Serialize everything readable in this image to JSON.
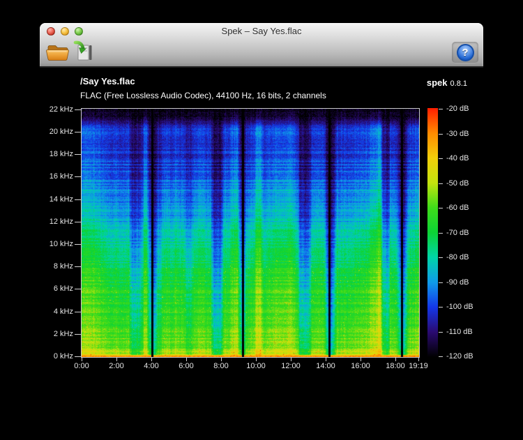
{
  "window": {
    "title": "Spek – Say Yes.flac",
    "traffic_lights": [
      "close",
      "minimize",
      "zoom"
    ]
  },
  "toolbar": {
    "open_button": "open-file",
    "save_button": "save-spectrogram",
    "help_button": "help",
    "help_glyph": "?"
  },
  "header": {
    "file_path": "/Say Yes.flac",
    "app_name": "spek",
    "app_version": "0.8.1",
    "stream_info": "FLAC (Free Lossless Audio Codec), 44100 Hz, 16 bits, 2 channels"
  },
  "chart_data": {
    "type": "heatmap",
    "subtype": "audio-spectrogram",
    "title": "/Say Yes.flac",
    "duration_seconds": 1159,
    "duration_label": "19:19",
    "sample_rate_hz": 44100,
    "bit_depth": 16,
    "channels": 2,
    "freq_axis": {
      "min_hz": 0,
      "max_hz": 22050,
      "ticks": [
        {
          "hz": 22000,
          "label": "22 kHz"
        },
        {
          "hz": 20000,
          "label": "20 kHz"
        },
        {
          "hz": 18000,
          "label": "18 kHz"
        },
        {
          "hz": 16000,
          "label": "16 kHz"
        },
        {
          "hz": 14000,
          "label": "14 kHz"
        },
        {
          "hz": 12000,
          "label": "12 kHz"
        },
        {
          "hz": 10000,
          "label": "10 kHz"
        },
        {
          "hz": 8000,
          "label": "8 kHz"
        },
        {
          "hz": 6000,
          "label": "6 kHz"
        },
        {
          "hz": 4000,
          "label": "4 kHz"
        },
        {
          "hz": 2000,
          "label": "2 kHz"
        },
        {
          "hz": 0,
          "label": "0 kHz"
        }
      ]
    },
    "time_axis": {
      "ticks": [
        {
          "s": 0,
          "label": "0:00"
        },
        {
          "s": 120,
          "label": "2:00"
        },
        {
          "s": 240,
          "label": "4:00"
        },
        {
          "s": 360,
          "label": "6:00"
        },
        {
          "s": 480,
          "label": "8:00"
        },
        {
          "s": 600,
          "label": "10:00"
        },
        {
          "s": 720,
          "label": "12:00"
        },
        {
          "s": 840,
          "label": "14:00"
        },
        {
          "s": 960,
          "label": "16:00"
        },
        {
          "s": 1080,
          "label": "18:00"
        },
        {
          "s": 1159,
          "label": "19:19"
        }
      ]
    },
    "db_axis": {
      "min_db": -120,
      "max_db": -20,
      "ticks": [
        {
          "db": -20,
          "label": "-20 dB"
        },
        {
          "db": -30,
          "label": "-30 dB"
        },
        {
          "db": -40,
          "label": "-40 dB"
        },
        {
          "db": -50,
          "label": "-50 dB"
        },
        {
          "db": -60,
          "label": "-60 dB"
        },
        {
          "db": -70,
          "label": "-70 dB"
        },
        {
          "db": -80,
          "label": "-80 dB"
        },
        {
          "db": -90,
          "label": "-90 dB"
        },
        {
          "db": -100,
          "label": "-100 dB"
        },
        {
          "db": -110,
          "label": "-110 dB"
        },
        {
          "db": -120,
          "label": "-120 dB"
        }
      ]
    },
    "palette": [
      [
        0.0,
        "#000000"
      ],
      [
        0.1,
        "#2a0a70"
      ],
      [
        0.2,
        "#1437e8"
      ],
      [
        0.3,
        "#0f9bea"
      ],
      [
        0.4,
        "#00d4a8"
      ],
      [
        0.5,
        "#0cd335"
      ],
      [
        0.6,
        "#3fdc1a"
      ],
      [
        0.7,
        "#c4e30e"
      ],
      [
        0.8,
        "#f2cf0a"
      ],
      [
        0.9,
        "#ff8a00"
      ],
      [
        1.0,
        "#ff1e00"
      ]
    ],
    "level_profile": [
      [
        0.0,
        0.88
      ],
      [
        0.01,
        0.8
      ],
      [
        0.03,
        0.73
      ],
      [
        0.08,
        0.7
      ],
      [
        0.2,
        0.66
      ],
      [
        0.32,
        0.62
      ],
      [
        0.42,
        0.56
      ],
      [
        0.52,
        0.47
      ],
      [
        0.62,
        0.4
      ],
      [
        0.72,
        0.33
      ],
      [
        0.82,
        0.27
      ],
      [
        0.875,
        0.24
      ],
      [
        0.895,
        0.3
      ],
      [
        0.925,
        0.28
      ],
      [
        0.945,
        0.15
      ],
      [
        0.97,
        0.07
      ],
      [
        1.0,
        0.03
      ]
    ],
    "track_gaps_fraction": [
      0.209,
      0.478,
      0.733,
      0.948
    ],
    "quiet_segments": [
      [
        0.144,
        0.181,
        0.8
      ],
      [
        0.214,
        0.235,
        0.84
      ],
      [
        0.309,
        0.326,
        0.9
      ],
      [
        0.385,
        0.417,
        0.74
      ],
      [
        0.49,
        0.512,
        0.86
      ],
      [
        0.532,
        0.548,
        0.92
      ],
      [
        0.643,
        0.676,
        0.74
      ],
      [
        0.734,
        0.754,
        0.84
      ],
      [
        0.889,
        0.911,
        0.76
      ],
      [
        0.949,
        0.968,
        0.88
      ]
    ],
    "noise_seed": 1337
  }
}
